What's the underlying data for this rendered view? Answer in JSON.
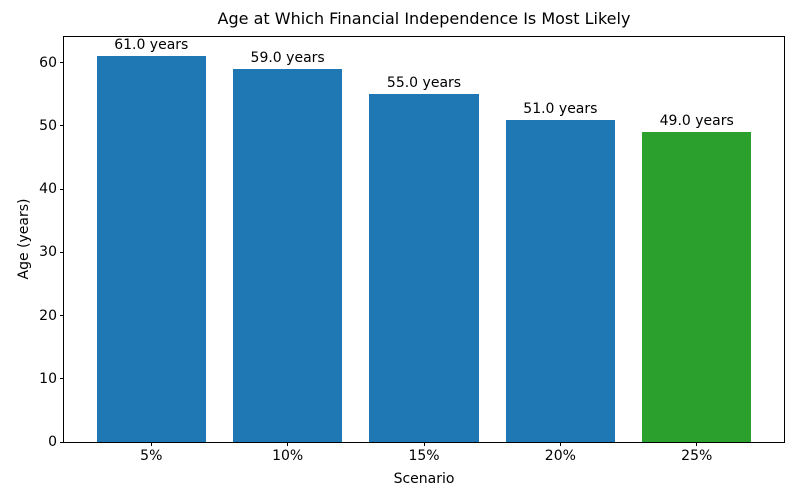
{
  "chart_data": {
    "type": "bar",
    "title": "Age at Which Financial Independence Is Most Likely",
    "xlabel": "Scenario",
    "ylabel": "Age (years)",
    "categories": [
      "5%",
      "10%",
      "15%",
      "20%",
      "25%"
    ],
    "values": [
      61.0,
      59.0,
      55.0,
      51.0,
      49.0
    ],
    "bar_labels": [
      "61.0 years",
      "59.0 years",
      "55.0 years",
      "51.0 years",
      "49.0 years"
    ],
    "bar_colors": [
      "#1f77b4",
      "#1f77b4",
      "#1f77b4",
      "#1f77b4",
      "#2ca02c"
    ],
    "yticks": [
      0,
      10,
      20,
      30,
      40,
      50,
      60
    ],
    "ylim": [
      0,
      64.05
    ],
    "bar_width_fraction": 0.8,
    "x_margin_fraction": 0.05,
    "grid": false,
    "legend_position": "none",
    "text_color": "#000000",
    "spine_color": "#000000",
    "background_color": "#ffffff"
  }
}
